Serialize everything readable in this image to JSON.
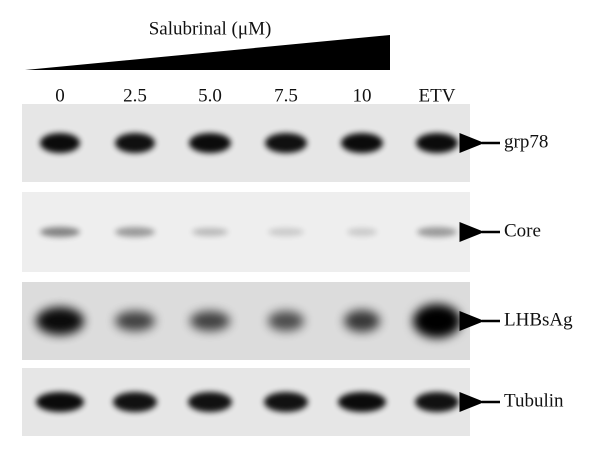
{
  "header": {
    "treatment": "Salubrinal (μM)"
  },
  "lanes": [
    "0",
    "2.5",
    "5.0",
    "7.5",
    "10",
    "ETV"
  ],
  "blots": [
    {
      "label": "grp78"
    },
    {
      "label": "Core"
    },
    {
      "label": "LHBsAg"
    },
    {
      "label": "Tubulin"
    }
  ]
}
